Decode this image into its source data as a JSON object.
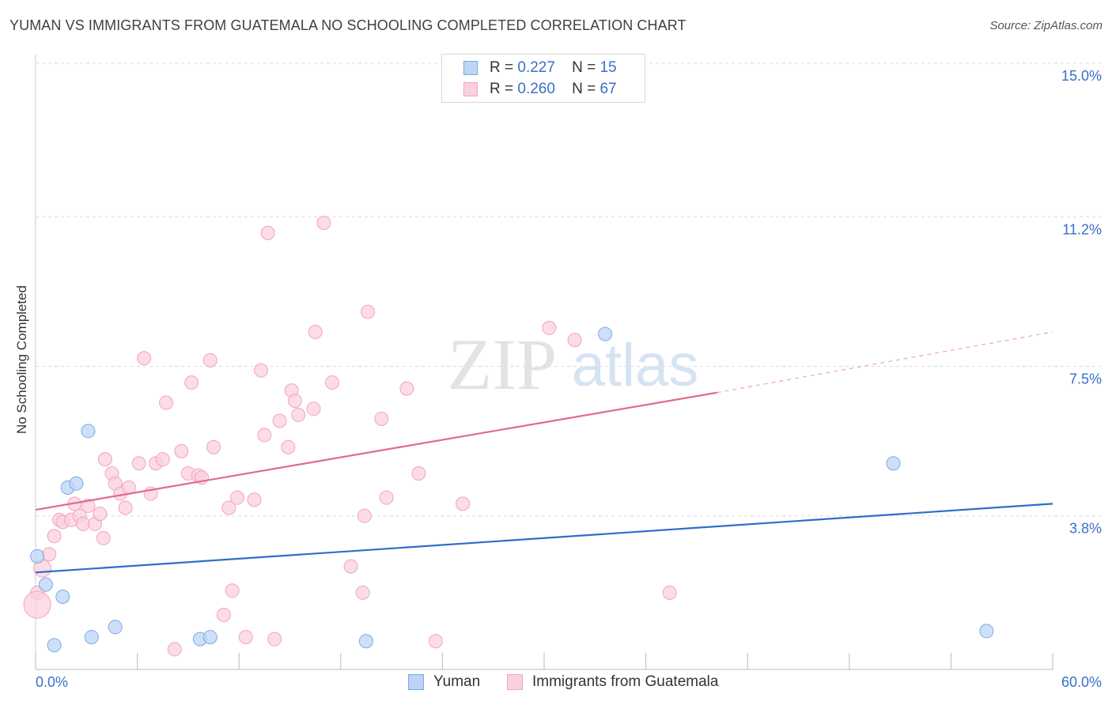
{
  "header": {
    "title": "YUMAN VS IMMIGRANTS FROM GUATEMALA NO SCHOOLING COMPLETED CORRELATION CHART",
    "source": "Source: ZipAtlas.com"
  },
  "watermark": {
    "zip": "ZIP",
    "atlas": "atlas"
  },
  "stats": [
    {
      "r_label": "R =",
      "r": "0.227",
      "n_label": "N =",
      "n": "15",
      "color": "#7aaae8",
      "fill": "#bcd5f5"
    },
    {
      "r_label": "R =",
      "r": "0.260",
      "n_label": "N =",
      "n": "67",
      "color": "#f0a6bc",
      "fill": "#fbd0dc"
    }
  ],
  "legend": [
    {
      "label": "Yuman",
      "color": "#7aaae8",
      "fill": "#bcd5f5"
    },
    {
      "label": "Immigrants from Guatemala",
      "color": "#f0a6bc",
      "fill": "#fbd0dc"
    }
  ],
  "chart_data": {
    "type": "scatter",
    "title": "YUMAN VS IMMIGRANTS FROM GUATEMALA NO SCHOOLING COMPLETED CORRELATION CHART",
    "ylabel": "No Schooling Completed",
    "xlabel": "",
    "xlim": [
      0,
      60
    ],
    "ylim": [
      0,
      15
    ],
    "x_tick_labels": [
      "0.0%",
      "60.0%"
    ],
    "y_ticks": [
      3.8,
      7.5,
      11.2,
      15.0
    ],
    "y_tick_labels": [
      "3.8%",
      "7.5%",
      "11.2%",
      "15.0%"
    ],
    "grid": true,
    "legend_position": "bottom-center",
    "series": [
      {
        "name": "Yuman",
        "color": "#4a86d4",
        "fill": "#bcd5f5",
        "stroke": "#7aaae8",
        "trendline": {
          "x": [
            0,
            60
          ],
          "y": [
            2.4,
            4.1
          ],
          "color": "#2f6ec8"
        },
        "points": [
          [
            0.1,
            2.8
          ],
          [
            0.6,
            2.1
          ],
          [
            1.1,
            0.6
          ],
          [
            1.6,
            1.8
          ],
          [
            1.9,
            4.5
          ],
          [
            2.4,
            4.6
          ],
          [
            3.1,
            5.9
          ],
          [
            3.3,
            0.8
          ],
          [
            4.7,
            1.05
          ],
          [
            9.7,
            0.75
          ],
          [
            10.3,
            0.8
          ],
          [
            19.5,
            0.7
          ],
          [
            33.6,
            8.3
          ],
          [
            50.6,
            5.1
          ],
          [
            56.1,
            0.95
          ]
        ]
      },
      {
        "name": "Immigrants from Guatemala",
        "color": "#e06a92",
        "fill": "#fbd0dc",
        "stroke": "#f0a6bc",
        "trendline": {
          "x": [
            0,
            40.2
          ],
          "y": [
            3.95,
            6.85
          ],
          "dashed_to": [
            60,
            8.35
          ],
          "color": "#e06a92"
        },
        "points": [
          [
            0.1,
            1.9
          ],
          [
            0.4,
            2.5
          ],
          [
            0.8,
            2.85
          ],
          [
            1.1,
            3.3
          ],
          [
            1.4,
            3.7
          ],
          [
            1.6,
            3.65
          ],
          [
            2.1,
            3.7
          ],
          [
            2.3,
            4.1
          ],
          [
            2.6,
            3.8
          ],
          [
            2.8,
            3.6
          ],
          [
            3.1,
            4.05
          ],
          [
            3.5,
            3.6
          ],
          [
            3.8,
            3.85
          ],
          [
            4.0,
            3.25
          ],
          [
            4.1,
            5.2
          ],
          [
            4.5,
            4.85
          ],
          [
            4.7,
            4.6
          ],
          [
            5.0,
            4.35
          ],
          [
            5.3,
            4.0
          ],
          [
            5.5,
            4.5
          ],
          [
            6.1,
            5.1
          ],
          [
            6.4,
            7.7
          ],
          [
            6.8,
            4.35
          ],
          [
            7.1,
            5.1
          ],
          [
            7.5,
            5.2
          ],
          [
            7.7,
            6.6
          ],
          [
            8.2,
            0.5
          ],
          [
            8.6,
            5.4
          ],
          [
            9.0,
            4.85
          ],
          [
            9.2,
            7.1
          ],
          [
            9.6,
            4.8
          ],
          [
            9.8,
            4.75
          ],
          [
            10.3,
            7.65
          ],
          [
            10.5,
            5.5
          ],
          [
            11.1,
            1.35
          ],
          [
            11.4,
            4.0
          ],
          [
            11.6,
            1.95
          ],
          [
            11.9,
            4.25
          ],
          [
            12.4,
            0.8
          ],
          [
            12.9,
            4.2
          ],
          [
            13.3,
            7.4
          ],
          [
            13.5,
            5.8
          ],
          [
            13.7,
            10.8
          ],
          [
            14.1,
            0.75
          ],
          [
            14.4,
            6.15
          ],
          [
            14.9,
            5.5
          ],
          [
            15.1,
            6.9
          ],
          [
            15.3,
            6.65
          ],
          [
            15.5,
            6.3
          ],
          [
            16.4,
            6.45
          ],
          [
            16.5,
            8.35
          ],
          [
            17.0,
            11.05
          ],
          [
            17.5,
            7.1
          ],
          [
            18.6,
            2.55
          ],
          [
            19.3,
            1.9
          ],
          [
            19.4,
            3.8
          ],
          [
            19.6,
            8.85
          ],
          [
            20.4,
            6.2
          ],
          [
            20.7,
            4.25
          ],
          [
            21.9,
            6.95
          ],
          [
            22.6,
            4.85
          ],
          [
            23.6,
            0.7
          ],
          [
            25.2,
            4.1
          ],
          [
            30.3,
            8.45
          ],
          [
            31.8,
            8.15
          ],
          [
            37.4,
            1.9
          ],
          [
            0.1,
            1.6
          ]
        ]
      }
    ]
  }
}
